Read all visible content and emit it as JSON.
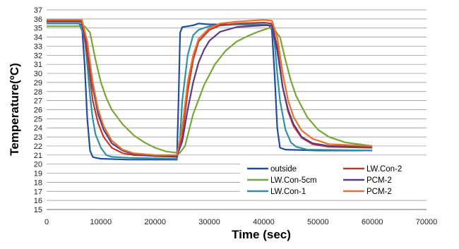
{
  "chart_data": {
    "type": "line",
    "title": "",
    "xlabel": "Time (sec)",
    "ylabel": "Temperature(ºC)",
    "xlim": [
      0,
      70000
    ],
    "ylim": [
      15,
      37
    ],
    "x_ticks": [
      "0",
      "10000",
      "20000",
      "30000",
      "40000",
      "50000",
      "60000",
      "70000"
    ],
    "y_ticks": [
      "15",
      "16",
      "17",
      "18",
      "19",
      "20",
      "21",
      "22",
      "23",
      "24",
      "25",
      "26",
      "27",
      "28",
      "29",
      "30",
      "31",
      "32",
      "33",
      "34",
      "35",
      "36",
      "37"
    ],
    "grid": true,
    "legend_position": "lower-right",
    "series": [
      {
        "name": "outside",
        "color": "#1f4e9c",
        "points": [
          [
            0,
            35.5
          ],
          [
            6000,
            35.5
          ],
          [
            6500,
            35.3
          ],
          [
            7000,
            31
          ],
          [
            7500,
            25
          ],
          [
            8000,
            21.5
          ],
          [
            8500,
            20.8
          ],
          [
            9000,
            20.7
          ],
          [
            10000,
            20.6
          ],
          [
            15000,
            20.5
          ],
          [
            20000,
            20.5
          ],
          [
            24000,
            20.5
          ],
          [
            24300,
            27
          ],
          [
            24600,
            34.5
          ],
          [
            25000,
            35.1
          ],
          [
            27000,
            35.3
          ],
          [
            28000,
            35.5
          ],
          [
            30000,
            35.4
          ],
          [
            35000,
            35.4
          ],
          [
            40000,
            35.3
          ],
          [
            41000,
            35.3
          ],
          [
            41500,
            34.8
          ],
          [
            42000,
            30
          ],
          [
            42500,
            24
          ],
          [
            43000,
            21.8
          ],
          [
            44000,
            21.6
          ],
          [
            50000,
            21.5
          ],
          [
            60000,
            21.5
          ]
        ]
      },
      {
        "name": "LW.Con-5cm",
        "color": "#77a636",
        "points": [
          [
            0,
            35.2
          ],
          [
            6000,
            35.2
          ],
          [
            7000,
            35.2
          ],
          [
            8000,
            34.5
          ],
          [
            9000,
            31.5
          ],
          [
            10000,
            29
          ],
          [
            11000,
            27.3
          ],
          [
            12000,
            26
          ],
          [
            14000,
            24.4
          ],
          [
            16000,
            23.2
          ],
          [
            18000,
            22.4
          ],
          [
            20000,
            21.8
          ],
          [
            22000,
            21.4
          ],
          [
            24500,
            21.2
          ],
          [
            25500,
            22
          ],
          [
            27000,
            25.5
          ],
          [
            29000,
            28.7
          ],
          [
            31000,
            31
          ],
          [
            33000,
            32.5
          ],
          [
            35000,
            33.5
          ],
          [
            37000,
            34.1
          ],
          [
            39000,
            34.6
          ],
          [
            41000,
            35
          ],
          [
            41500,
            35
          ],
          [
            42000,
            34.8
          ],
          [
            43000,
            34
          ],
          [
            44000,
            31.5
          ],
          [
            45000,
            29.2
          ],
          [
            46000,
            27.5
          ],
          [
            48000,
            25.2
          ],
          [
            50000,
            23.8
          ],
          [
            52000,
            23
          ],
          [
            55000,
            22.4
          ],
          [
            60000,
            22
          ]
        ]
      },
      {
        "name": "LW.Con-1",
        "color": "#2e8fa8",
        "points": [
          [
            0,
            35.5
          ],
          [
            6000,
            35.5
          ],
          [
            7000,
            34
          ],
          [
            7500,
            31
          ],
          [
            8000,
            27.5
          ],
          [
            8500,
            25
          ],
          [
            9000,
            23.3
          ],
          [
            10000,
            21.8
          ],
          [
            11000,
            21
          ],
          [
            12000,
            20.8
          ],
          [
            15000,
            20.7
          ],
          [
            24000,
            20.6
          ],
          [
            24500,
            22
          ],
          [
            25000,
            27
          ],
          [
            26000,
            32
          ],
          [
            27000,
            34.2
          ],
          [
            28000,
            34.8
          ],
          [
            30000,
            35.2
          ],
          [
            35000,
            35.4
          ],
          [
            40000,
            35.4
          ],
          [
            41500,
            35.3
          ],
          [
            42000,
            33.5
          ],
          [
            42500,
            30
          ],
          [
            43000,
            27
          ],
          [
            44000,
            23.8
          ],
          [
            45000,
            22.4
          ],
          [
            46000,
            21.9
          ],
          [
            48000,
            21.6
          ],
          [
            60000,
            21.5
          ]
        ]
      },
      {
        "name": "LW.Con-2",
        "color": "#c0392b",
        "points": [
          [
            0,
            35.7
          ],
          [
            6000,
            35.7
          ],
          [
            6500,
            35.6
          ],
          [
            7500,
            32
          ],
          [
            8500,
            27
          ],
          [
            9500,
            24.5
          ],
          [
            10500,
            23
          ],
          [
            12000,
            21.8
          ],
          [
            14000,
            21.2
          ],
          [
            16000,
            21
          ],
          [
            20000,
            20.9
          ],
          [
            24000,
            20.8
          ],
          [
            25000,
            23
          ],
          [
            26000,
            28
          ],
          [
            27000,
            31.5
          ],
          [
            28000,
            33.5
          ],
          [
            30000,
            34.8
          ],
          [
            32000,
            35.3
          ],
          [
            35000,
            35.5
          ],
          [
            40000,
            35.6
          ],
          [
            41500,
            35.5
          ],
          [
            42500,
            33
          ],
          [
            43500,
            28.5
          ],
          [
            44500,
            25.8
          ],
          [
            45500,
            24.2
          ],
          [
            47000,
            22.9
          ],
          [
            49000,
            22.2
          ],
          [
            52000,
            21.9
          ],
          [
            60000,
            21.8
          ]
        ]
      },
      {
        "name": "PCM-2",
        "color": "#5b3b82",
        "points": [
          [
            0,
            35.8
          ],
          [
            6000,
            35.8
          ],
          [
            6500,
            35.8
          ],
          [
            7500,
            33
          ],
          [
            8500,
            28.5
          ],
          [
            9500,
            25.5
          ],
          [
            10500,
            23.8
          ],
          [
            12000,
            22.3
          ],
          [
            14000,
            21.5
          ],
          [
            16000,
            21.1
          ],
          [
            20000,
            20.9
          ],
          [
            24000,
            20.9
          ],
          [
            25000,
            22.5
          ],
          [
            26000,
            26
          ],
          [
            27000,
            29
          ],
          [
            28000,
            31.2
          ],
          [
            29000,
            32.6
          ],
          [
            30000,
            33.6
          ],
          [
            32000,
            34.6
          ],
          [
            35000,
            35.1
          ],
          [
            40000,
            35.3
          ],
          [
            41500,
            35.3
          ],
          [
            42500,
            32.5
          ],
          [
            43500,
            28.5
          ],
          [
            44500,
            26
          ],
          [
            45500,
            24.4
          ],
          [
            47000,
            23
          ],
          [
            49000,
            22.3
          ],
          [
            52000,
            22
          ],
          [
            60000,
            21.9
          ]
        ]
      },
      {
        "name": "PCM-2",
        "color": "#e8712b",
        "points": [
          [
            0,
            35.9
          ],
          [
            6000,
            35.9
          ],
          [
            6500,
            35.9
          ],
          [
            7500,
            33.5
          ],
          [
            8500,
            29
          ],
          [
            9500,
            26
          ],
          [
            10500,
            24.2
          ],
          [
            12000,
            22.6
          ],
          [
            14000,
            21.6
          ],
          [
            16000,
            21.2
          ],
          [
            20000,
            21
          ],
          [
            24000,
            21
          ],
          [
            25000,
            24
          ],
          [
            26000,
            29
          ],
          [
            27000,
            32
          ],
          [
            28000,
            33.8
          ],
          [
            30000,
            35
          ],
          [
            32000,
            35.5
          ],
          [
            35000,
            35.7
          ],
          [
            40000,
            35.9
          ],
          [
            41500,
            35.8
          ],
          [
            42500,
            34
          ],
          [
            43500,
            30
          ],
          [
            44500,
            27
          ],
          [
            45500,
            25.2
          ],
          [
            47000,
            23.7
          ],
          [
            49000,
            22.8
          ],
          [
            52000,
            22.2
          ],
          [
            60000,
            22
          ]
        ]
      }
    ],
    "legend": [
      {
        "label": "outside",
        "color": "#1f4e9c"
      },
      {
        "label": "LW.Con-2",
        "color": "#c0392b"
      },
      {
        "label": "LW.Con-5cm",
        "color": "#77a636"
      },
      {
        "label": "PCM-2",
        "color": "#5b3b82"
      },
      {
        "label": "LW.Con-1",
        "color": "#2e8fa8"
      },
      {
        "label": "PCM-2",
        "color": "#e8712b"
      }
    ]
  }
}
